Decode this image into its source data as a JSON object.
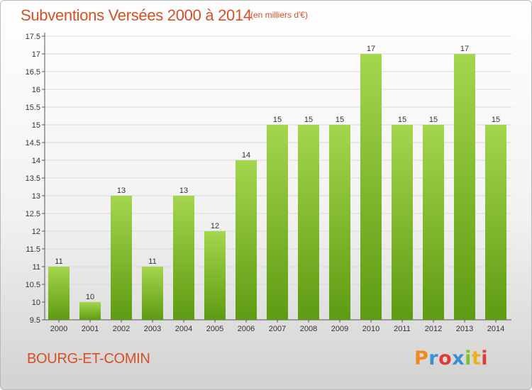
{
  "header": {
    "title": "Subventions Versées 2000 à 2014",
    "unit_note": "(en milliers d'€)"
  },
  "footer": {
    "commune": "BOURG-ET-COMIN",
    "logo_text": "Proxiti",
    "logo_colors": [
      "#f08a1c",
      "#3a8fd6",
      "#e23b3b",
      "#3a8fd6",
      "#7fbf2a",
      "#f0b01c",
      "#e23b3b"
    ]
  },
  "colors": {
    "title": "#d94f23",
    "bar_top": "#a4d64e",
    "bar_bottom": "#5e9b12",
    "grid": "#d9d9d9"
  },
  "chart_data": {
    "type": "bar",
    "title": "Subventions Versées 2000 à 2014",
    "xlabel": "",
    "ylabel": "",
    "categories": [
      "2000",
      "2001",
      "2002",
      "2003",
      "2004",
      "2005",
      "2006",
      "2007",
      "2008",
      "2009",
      "2010",
      "2011",
      "2012",
      "2013",
      "2014"
    ],
    "values": [
      11,
      10,
      13,
      11,
      13,
      12,
      14,
      15,
      15,
      15,
      17,
      15,
      15,
      17,
      15
    ],
    "ylim": [
      9.5,
      17.5
    ],
    "yticks": [
      "9.5",
      "10",
      "10.5",
      "11",
      "11.5",
      "12",
      "12.5",
      "13",
      "13.5",
      "14",
      "14.5",
      "15",
      "15.5",
      "16",
      "16.5",
      "17",
      "17.5"
    ],
    "grid": true,
    "legend": "none"
  }
}
